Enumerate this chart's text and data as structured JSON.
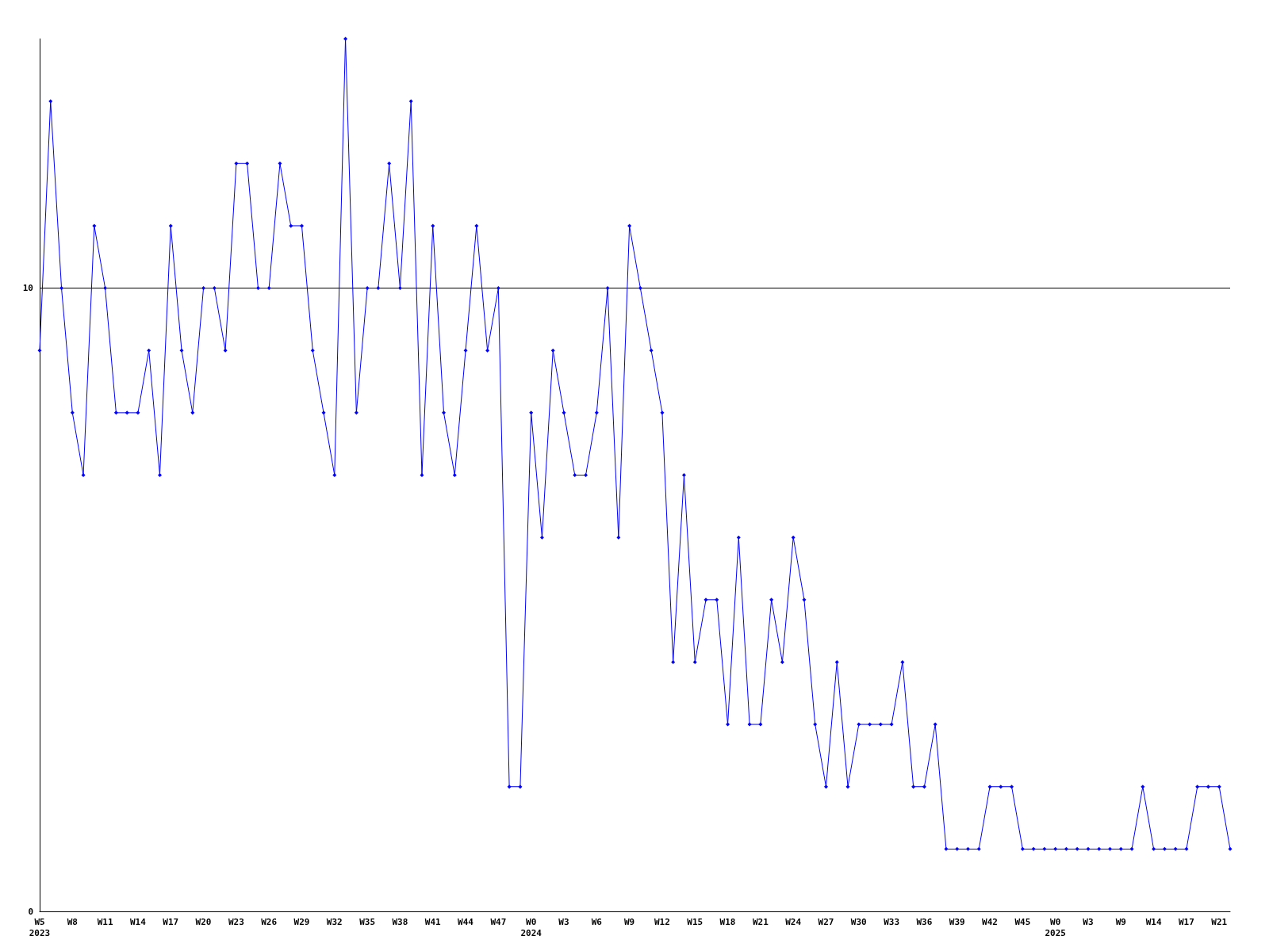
{
  "chart_data": {
    "type": "line",
    "categories": [
      "W5\n2023",
      null,
      null,
      "W8",
      null,
      null,
      "W11",
      null,
      null,
      "W14",
      null,
      null,
      "W17",
      null,
      null,
      "W20",
      null,
      null,
      "W23",
      null,
      null,
      "W26",
      null,
      null,
      "W29",
      null,
      null,
      "W32",
      null,
      null,
      "W35",
      null,
      null,
      "W38",
      null,
      null,
      "W41",
      null,
      null,
      "W44",
      null,
      null,
      "W47",
      null,
      null,
      "W0\n2024",
      null,
      null,
      "W3",
      null,
      null,
      "W6",
      null,
      null,
      "W9",
      null,
      null,
      "W12",
      null,
      null,
      "W15",
      null,
      null,
      "W18",
      null,
      null,
      "W21",
      null,
      null,
      "W24",
      null,
      null,
      "W27",
      null,
      null,
      "W30",
      null,
      null,
      "W33",
      null,
      null,
      "W36",
      null,
      null,
      "W39",
      null,
      null,
      "W42",
      null,
      null,
      "W45",
      null,
      null,
      "W0\n2025",
      null,
      null,
      "W3",
      null,
      null,
      "W9",
      null,
      null,
      "W14",
      null,
      null,
      "W17",
      null,
      null,
      "W21",
      null
    ],
    "series": [
      {
        "color": "#0000ff",
        "values": [
          9,
          13,
          10,
          8,
          7,
          11,
          10,
          8,
          8,
          8,
          9,
          7,
          11,
          9,
          8,
          10,
          10,
          9,
          12,
          12,
          10,
          10,
          12,
          11,
          11,
          9,
          8,
          7,
          14,
          8,
          10,
          10,
          12,
          10,
          13,
          7,
          11,
          8,
          7,
          9,
          11,
          9,
          10,
          2,
          2,
          8,
          6,
          9,
          8,
          7,
          7,
          8,
          10,
          6,
          11,
          10,
          9,
          8,
          4,
          7,
          4,
          5,
          5,
          3,
          6,
          3,
          3,
          5,
          4,
          6,
          5,
          3,
          2,
          4,
          2,
          3,
          3,
          3,
          3,
          4,
          2,
          2,
          3,
          1,
          1,
          1,
          1,
          2,
          2,
          2,
          1,
          1,
          1,
          1,
          1,
          1,
          1,
          1,
          1,
          1,
          1,
          2,
          1,
          1,
          1,
          1,
          2,
          2,
          2,
          1
        ]
      }
    ],
    "ylim": [
      0,
      14
    ],
    "yticks": [
      0,
      10
    ],
    "grid": "y",
    "marker": "diamond",
    "line_style": "solid"
  }
}
